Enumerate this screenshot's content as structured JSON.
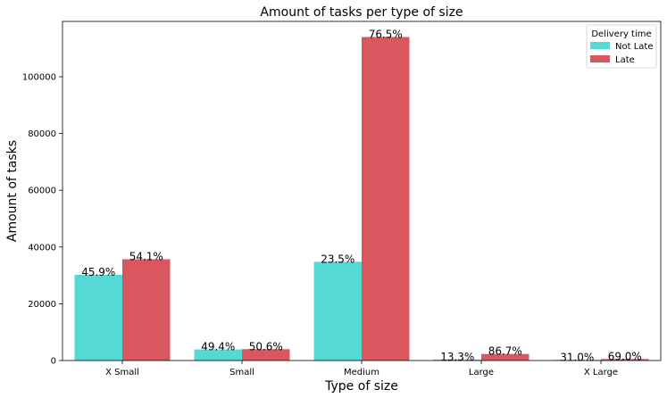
{
  "chart_data": {
    "type": "bar",
    "title": "Amount of tasks per type of size",
    "xlabel": "Type of size",
    "ylabel": "Amount of tasks",
    "categories": [
      "X Small",
      "Small",
      "Medium",
      "Large",
      "X Large"
    ],
    "ylim": [
      0,
      119500
    ],
    "yticks": [
      0,
      20000,
      40000,
      60000,
      80000,
      100000
    ],
    "grid": false,
    "legend": {
      "title": "Delivery time",
      "placement": "top-right"
    },
    "series": [
      {
        "name": "Not Late",
        "color": "#55d9d4",
        "values": [
          30200,
          3900,
          34800,
          350,
          230
        ],
        "labels": [
          "45.9%",
          "49.4%",
          "23.5%",
          "13.3%",
          "31.0%"
        ]
      },
      {
        "name": "Late",
        "color": "#db5760",
        "values": [
          35700,
          4000,
          114000,
          2300,
          520
        ],
        "labels": [
          "54.1%",
          "50.6%",
          "76.5%",
          "86.7%",
          "69.0%"
        ]
      }
    ]
  }
}
